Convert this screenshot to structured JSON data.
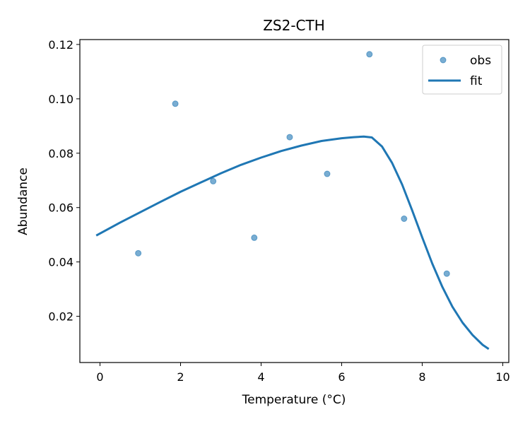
{
  "chart_data": {
    "type": "scatter",
    "title": "ZS2-CTH",
    "xlabel": "Temperature (°C)",
    "ylabel": "Abundance",
    "xlim": [
      -0.5,
      10.15
    ],
    "ylim": [
      0.003,
      0.1218
    ],
    "x_ticks": [
      0,
      2,
      4,
      6,
      8,
      10
    ],
    "x_tick_labels": [
      "0",
      "2",
      "4",
      "6",
      "8",
      "10"
    ],
    "y_ticks": [
      0.02,
      0.04,
      0.06,
      0.08,
      0.1,
      0.12
    ],
    "y_tick_labels": [
      "0.02",
      "0.04",
      "0.06",
      "0.08",
      "0.10",
      "0.12"
    ],
    "grid": false,
    "legend": {
      "position": "top-right",
      "entries": [
        {
          "label": "obs",
          "marker": "circle"
        },
        {
          "label": "fit",
          "marker": "line"
        }
      ]
    },
    "colors": {
      "series": "#1f77b4",
      "axes": "#000000",
      "background": "#ffffff"
    },
    "series": [
      {
        "name": "obs",
        "kind": "scatter",
        "x": [
          0.95,
          1.87,
          2.81,
          3.83,
          4.71,
          5.64,
          6.69,
          7.55,
          8.61
        ],
        "y": [
          0.0432,
          0.0982,
          0.0697,
          0.0489,
          0.0859,
          0.0724,
          0.1164,
          0.0559,
          0.0357
        ]
      },
      {
        "name": "fit",
        "kind": "line",
        "x": [
          -0.07,
          0.5,
          1.0,
          1.5,
          2.0,
          2.5,
          3.0,
          3.5,
          4.0,
          4.5,
          5.0,
          5.5,
          6.0,
          6.3,
          6.55,
          6.75,
          7.0,
          7.25,
          7.5,
          7.75,
          8.0,
          8.25,
          8.5,
          8.75,
          9.0,
          9.25,
          9.5,
          9.63
        ],
        "y": [
          0.0499,
          0.0545,
          0.0583,
          0.0621,
          0.0658,
          0.0692,
          0.0726,
          0.0757,
          0.0784,
          0.0808,
          0.0828,
          0.0845,
          0.0855,
          0.0859,
          0.0861,
          0.0858,
          0.0825,
          0.0765,
          0.0685,
          0.059,
          0.049,
          0.0394,
          0.0308,
          0.0235,
          0.0177,
          0.0131,
          0.0095,
          0.0082
        ]
      }
    ]
  }
}
